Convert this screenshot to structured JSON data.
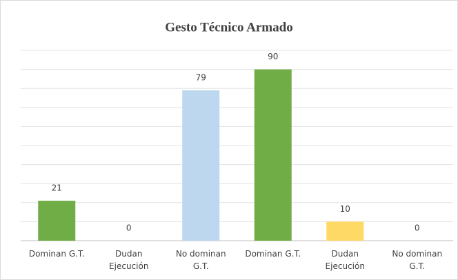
{
  "chart_data": {
    "type": "bar",
    "title": "Gesto Técnico Armado",
    "categories": [
      "Dominan G.T.",
      "Dudan Ejecución",
      "No dominan G.T.",
      "Dominan G.T.",
      "Dudan Ejecución",
      "No dominan G.T."
    ],
    "values": [
      21,
      0,
      79,
      90,
      10,
      0
    ],
    "colors": [
      "#70ad47",
      "#ffd966",
      "#bdd7ee",
      "#70ad47",
      "#ffd966",
      "#bdd7ee"
    ],
    "ylim": [
      0,
      100
    ],
    "yticks": [
      0,
      10,
      20,
      30,
      40,
      50,
      60,
      70,
      80,
      90,
      100
    ],
    "grid": true
  }
}
